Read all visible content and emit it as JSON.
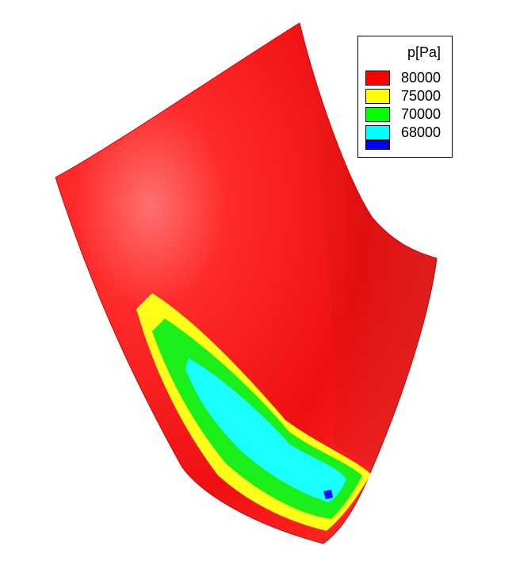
{
  "legend": {
    "title": "p[Pa]",
    "entries": [
      {
        "label": "80000",
        "color": "#ff0000"
      },
      {
        "label": "75000",
        "color": "#ffff00"
      },
      {
        "label": "70000",
        "color": "#00ff00"
      },
      {
        "label": "68000",
        "color": "#00ffff"
      },
      {
        "label": "",
        "color": "#0000ff"
      }
    ]
  },
  "colors": {
    "surface": "#ff2020",
    "band_yellow": "#ffff1a",
    "band_green": "#1aef1a",
    "band_cyan": "#1affff",
    "band_blue": "#1010ff"
  }
}
